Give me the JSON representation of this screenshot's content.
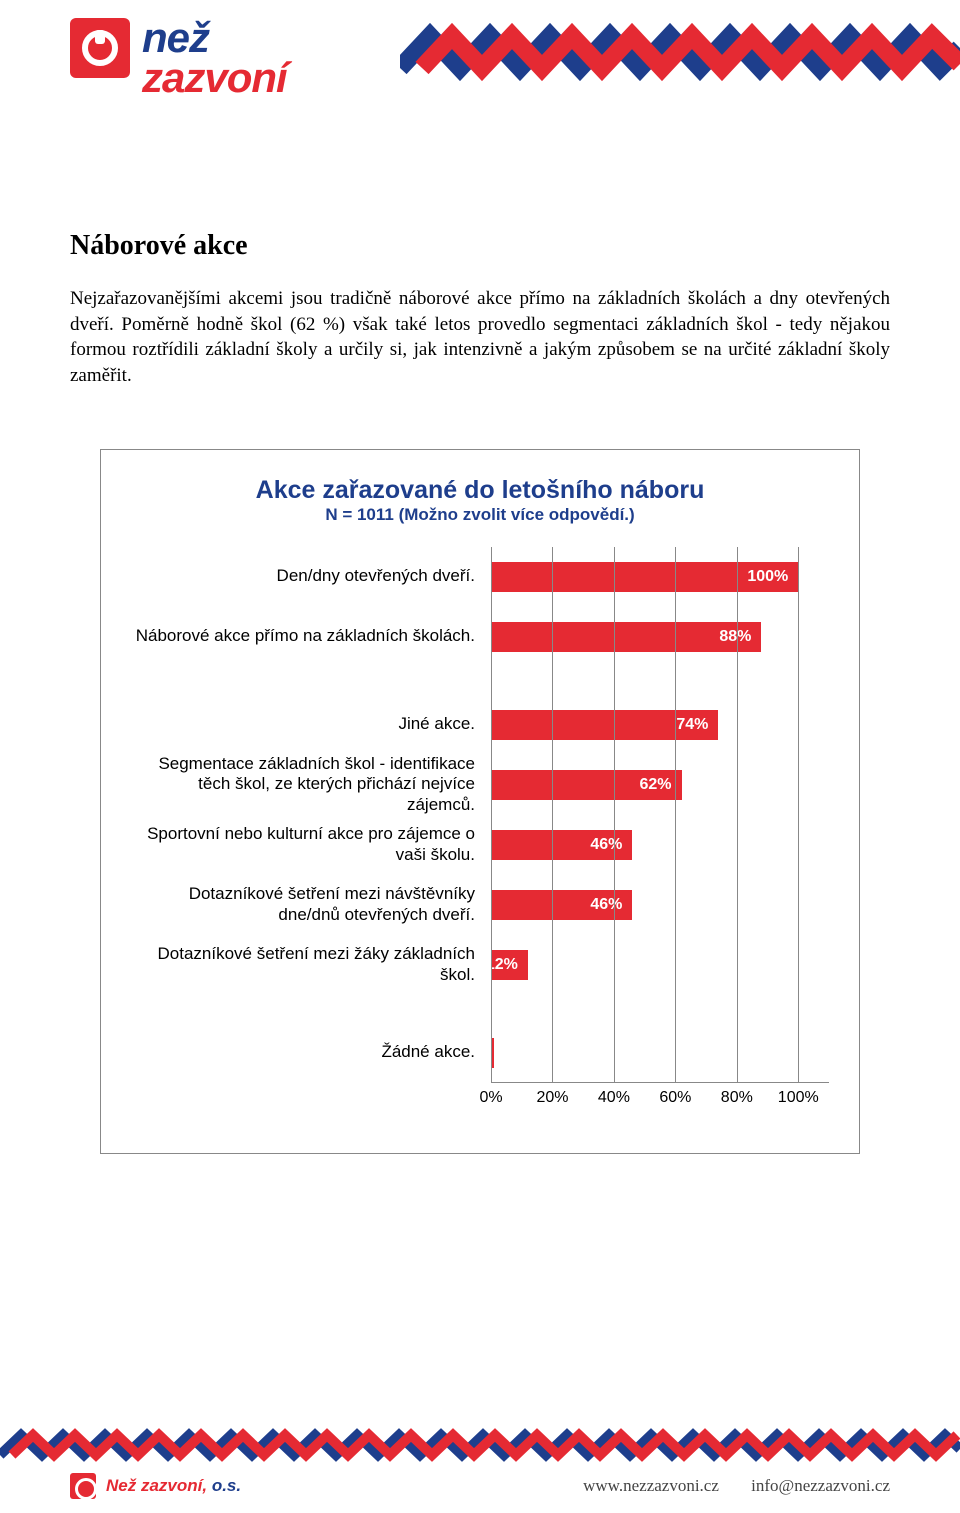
{
  "brand": {
    "nez": "než",
    "zazvoni": "zazvoní",
    "red": "#e52a33",
    "blue": "#1e3e8c"
  },
  "heading": "Náborové akce",
  "paragraph": "Nejzařazovanějšími akcemi jsou tradičně náborové akce přímo na základních školách a dny otevřených dveří. Poměrně hodně škol (62 %) však také letos provedlo segmentaci základních škol - tedy nějakou formou roztřídili základní školy a určily si, jak intenzivně a jakým způsobem se na určité základní školy zaměřit.",
  "chart": {
    "title": "Akce zařazované do letošního náboru",
    "subtitle": "N = 1011 (Možno zvolit více odpovědí.)",
    "bar_color": "#e52a33",
    "grid_color": "#888888",
    "label_fontsize": 17,
    "value_fontsize": 16,
    "xmin": 0,
    "xmax": 110,
    "ticks": [
      0,
      20,
      40,
      60,
      80,
      100
    ],
    "tick_labels": [
      "0%",
      "20%",
      "40%",
      "60%",
      "80%",
      "100%"
    ],
    "groups": [
      {
        "rows": [
          {
            "label": "Den/dny otevřených dveří.",
            "value": 100,
            "value_label": "100%"
          },
          {
            "label": "Náborové akce přímo na základních školách.",
            "value": 88,
            "value_label": "88%"
          }
        ]
      },
      {
        "rows": [
          {
            "label": "Jiné akce.",
            "value": 74,
            "value_label": "74%"
          },
          {
            "label": "Segmentace základních škol - identifikace těch škol, ze kterých přichází nejvíce zájemců.",
            "value": 62,
            "value_label": "62%"
          },
          {
            "label": "Sportovní nebo kulturní akce pro zájemce o vaši školu.",
            "value": 46,
            "value_label": "46%"
          },
          {
            "label": "Dotazníkové šetření mezi návštěvníky dne/dnů otevřených dveří.",
            "value": 46,
            "value_label": "46%"
          },
          {
            "label": "Dotazníkové šetření mezi žáky základních škol.",
            "value": 12,
            "value_label": "12%"
          }
        ]
      },
      {
        "rows": [
          {
            "label": "Žádné akce.",
            "value": 1,
            "value_label": "0",
            "tiny": true
          }
        ]
      }
    ]
  },
  "footer": {
    "org": "Než zazvoní,",
    "org_suffix": "o.s.",
    "url": "www.nezzazvoni.cz",
    "email": "info@nezzazvoni.cz"
  }
}
